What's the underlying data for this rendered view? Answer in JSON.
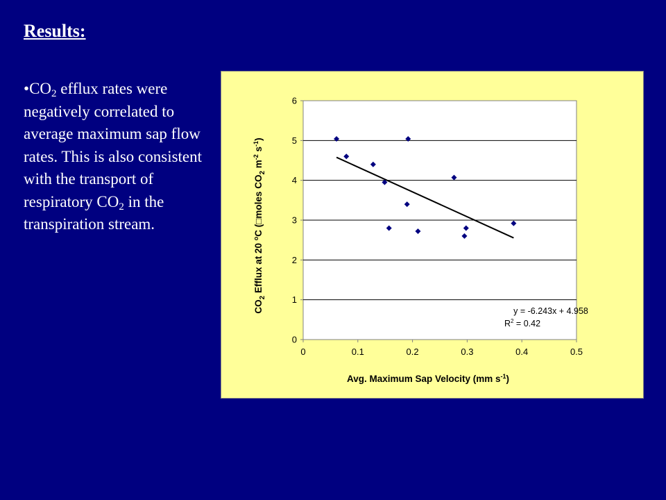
{
  "slide": {
    "heading": "Results:",
    "bullet": {
      "marker": "•",
      "part1": "CO",
      "sub1": "2",
      "part2": " efflux rates were negatively correlated to average maximum sap flow rates.  This is also consistent with the transport of respiratory CO",
      "sub2": "2",
      "part3": " in the transpiration stream."
    }
  },
  "colors": {
    "background": "#000080",
    "chart_panel": "#ffff99",
    "plot_area": "#ffffff",
    "marker": "#000080",
    "trendline": "#000000"
  },
  "chart_data": {
    "type": "scatter",
    "xlabel": {
      "pre": "Avg. Maximum Sap Velocity (mm s",
      "sup": "-1",
      "post": ")"
    },
    "ylabel": {
      "a": "CO",
      "b": "2",
      "c": " Efflux at 20 ",
      "d": "o",
      "e": "C (",
      "f": "□",
      "g": "moles CO",
      "h": "2",
      "i": " m",
      "j": "-2",
      "k": " s",
      "l": "-1",
      "m": ")"
    },
    "xlim": [
      0,
      0.5
    ],
    "ylim": [
      0,
      6
    ],
    "x_ticks": [
      "0",
      "0.1",
      "0.2",
      "0.3",
      "0.4",
      "0.5"
    ],
    "y_ticks": [
      "0",
      "1",
      "2",
      "3",
      "4",
      "5",
      "6"
    ],
    "grid": "horizontal",
    "points": [
      {
        "x": 0.061,
        "y": 5.04
      },
      {
        "x": 0.079,
        "y": 4.6
      },
      {
        "x": 0.128,
        "y": 4.4
      },
      {
        "x": 0.149,
        "y": 3.95
      },
      {
        "x": 0.157,
        "y": 2.8
      },
      {
        "x": 0.19,
        "y": 3.4
      },
      {
        "x": 0.192,
        "y": 5.04
      },
      {
        "x": 0.21,
        "y": 2.72
      },
      {
        "x": 0.276,
        "y": 4.07
      },
      {
        "x": 0.295,
        "y": 2.6
      },
      {
        "x": 0.298,
        "y": 2.8
      },
      {
        "x": 0.385,
        "y": 2.92
      }
    ],
    "trendline": {
      "slope": -6.243,
      "intercept": 4.958,
      "x_start": 0.061,
      "x_end": 0.385
    },
    "equation": "y = -6.243x + 4.958",
    "r_squared": {
      "pre": "R",
      "sup": "2",
      "post": " = 0.42"
    }
  }
}
